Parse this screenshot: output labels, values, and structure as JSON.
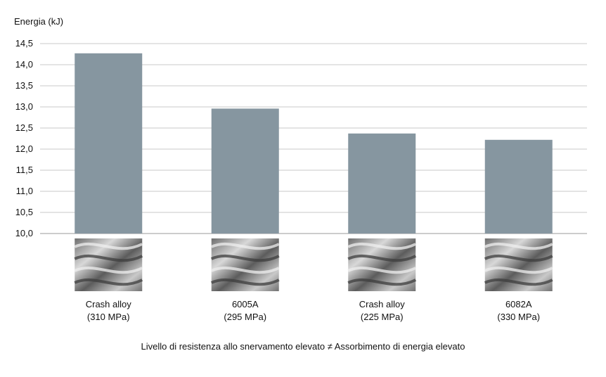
{
  "chart_data": {
    "type": "bar",
    "ylabel": "Energia (kJ)",
    "xlabel": "",
    "title": "",
    "ylim": [
      10.0,
      14.5
    ],
    "yticks": [
      "10,0",
      "10,5",
      "11,0",
      "11,5",
      "12,0",
      "12,5",
      "13,0",
      "13,5",
      "14,0",
      "14,5"
    ],
    "categories": [
      {
        "name": "Crash alloy",
        "sub": "(310 MPa)"
      },
      {
        "name": "6005A",
        "sub": "(295 MPa)"
      },
      {
        "name": "Crash alloy",
        "sub": "(225 MPa)"
      },
      {
        "name": "6082A",
        "sub": "(330 MPa)"
      }
    ],
    "values": [
      14.27,
      12.96,
      12.37,
      12.22
    ],
    "bar_color": "#8696a0",
    "grid": true,
    "caption": "Livello di resistenza allo snervamento elevato ≠ Assorbimento di energia elevato"
  }
}
